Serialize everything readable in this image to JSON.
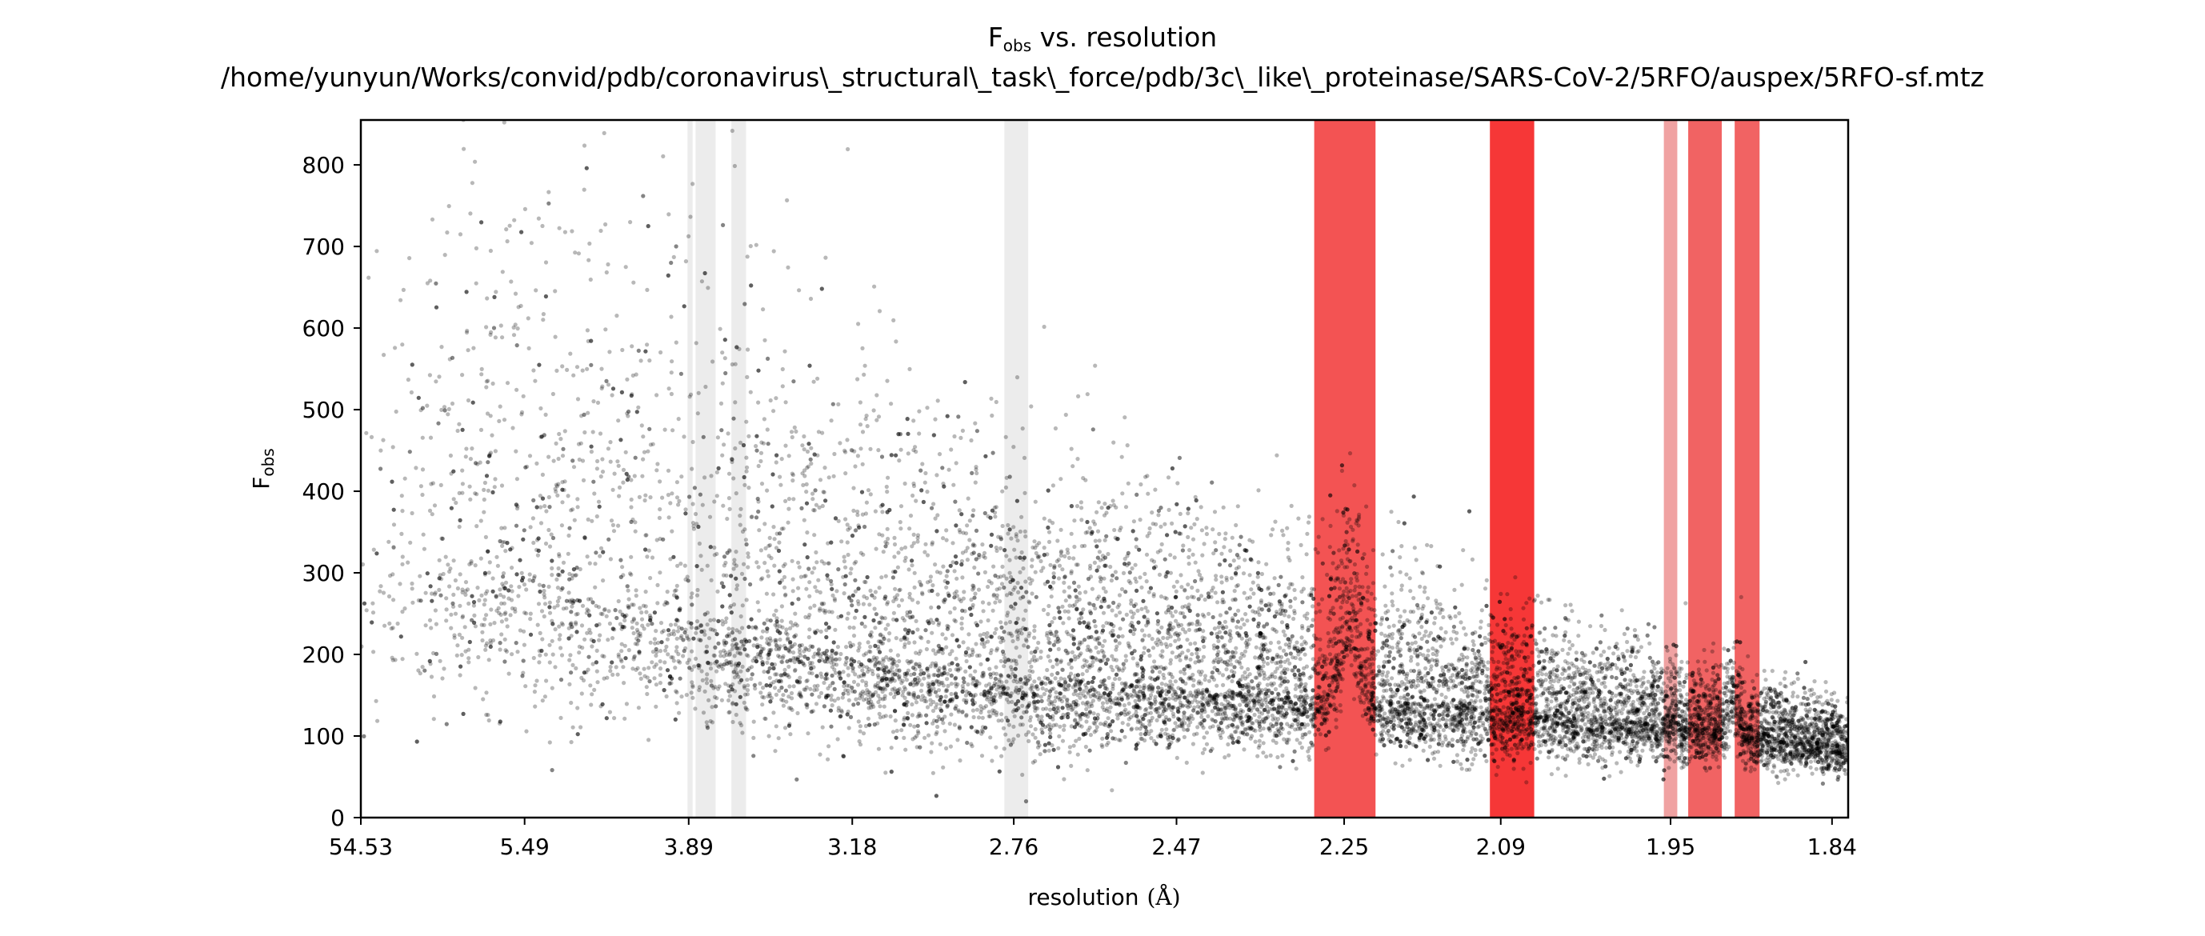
{
  "chart_data": {
    "type": "scatter",
    "title": {
      "quantity_main": "F",
      "quantity_sub": "obs",
      "suffix": " vs. resolution",
      "path": "/home/yunyun/Works/convid/pdb/coronavirus\\_structural\\_task\\_force/pdb/3c\\_like\\_proteinase/SARS-CoV-2/5RFO/auspex/5RFO-sf.mtz"
    },
    "xlabel": {
      "text": "resolution",
      "unit": "(Å)"
    },
    "ylabel": {
      "main": "F",
      "sub": "obs"
    },
    "x_scale": "inverse-square resolution (1/d²)",
    "x_range_resolution": [
      54.53,
      1.83
    ],
    "ylim": [
      0,
      855
    ],
    "grid": false,
    "x_ticks": [
      "54.53",
      "5.49",
      "3.89",
      "3.18",
      "2.76",
      "2.47",
      "2.25",
      "2.09",
      "1.95",
      "1.84"
    ],
    "y_ticks": [
      "0",
      "100",
      "200",
      "300",
      "400",
      "500",
      "600",
      "700",
      "800"
    ],
    "point_color": "#000000",
    "ice_ring_bands": [
      {
        "d_low": 3.897,
        "d_high": 3.867,
        "color": "#d9d9d9",
        "opacity": 0.5
      },
      {
        "d_low": 3.85,
        "d_high": 3.74,
        "color": "#d9d9d9",
        "opacity": 0.5
      },
      {
        "d_low": 3.66,
        "d_high": 3.59,
        "color": "#d9d9d9",
        "opacity": 0.5
      },
      {
        "d_low": 2.78,
        "d_high": 2.73,
        "color": "#d9d9d9",
        "opacity": 0.5
      },
      {
        "d_low": 2.285,
        "d_high": 2.215,
        "color": "#f02828",
        "opacity": 0.8
      },
      {
        "d_low": 2.1,
        "d_high": 2.06,
        "color": "#f41414",
        "opacity": 0.85
      },
      {
        "d_low": 1.955,
        "d_high": 1.945,
        "color": "#e66464",
        "opacity": 0.6
      },
      {
        "d_low": 1.937,
        "d_high": 1.913,
        "color": "#ee3c3c",
        "opacity": 0.8
      },
      {
        "d_low": 1.904,
        "d_high": 1.887,
        "color": "#ee3c3c",
        "opacity": 0.8
      }
    ],
    "trend_envelope": [
      {
        "d": 5.49,
        "median": 300,
        "spread_up": 520,
        "spread_down": 160
      },
      {
        "d": 3.89,
        "median": 240,
        "spread_up": 500,
        "spread_down": 120
      },
      {
        "d": 3.18,
        "median": 200,
        "spread_up": 380,
        "spread_down": 100
      },
      {
        "d": 2.76,
        "median": 175,
        "spread_up": 300,
        "spread_down": 90
      },
      {
        "d": 2.47,
        "median": 160,
        "spread_up": 240,
        "spread_down": 70
      },
      {
        "d": 2.25,
        "median": 145,
        "spread_up": 180,
        "spread_down": 60
      },
      {
        "d": 2.09,
        "median": 135,
        "spread_up": 130,
        "spread_down": 55
      },
      {
        "d": 1.95,
        "median": 115,
        "spread_up": 90,
        "spread_down": 45
      },
      {
        "d": 1.84,
        "median": 90,
        "spread_up": 60,
        "spread_down": 35
      }
    ],
    "bumps": [
      {
        "d": 2.245,
        "amplitude": 120,
        "width_d": 0.012
      },
      {
        "d": 1.905,
        "amplitude": 55,
        "width_d": 0.004
      }
    ]
  }
}
